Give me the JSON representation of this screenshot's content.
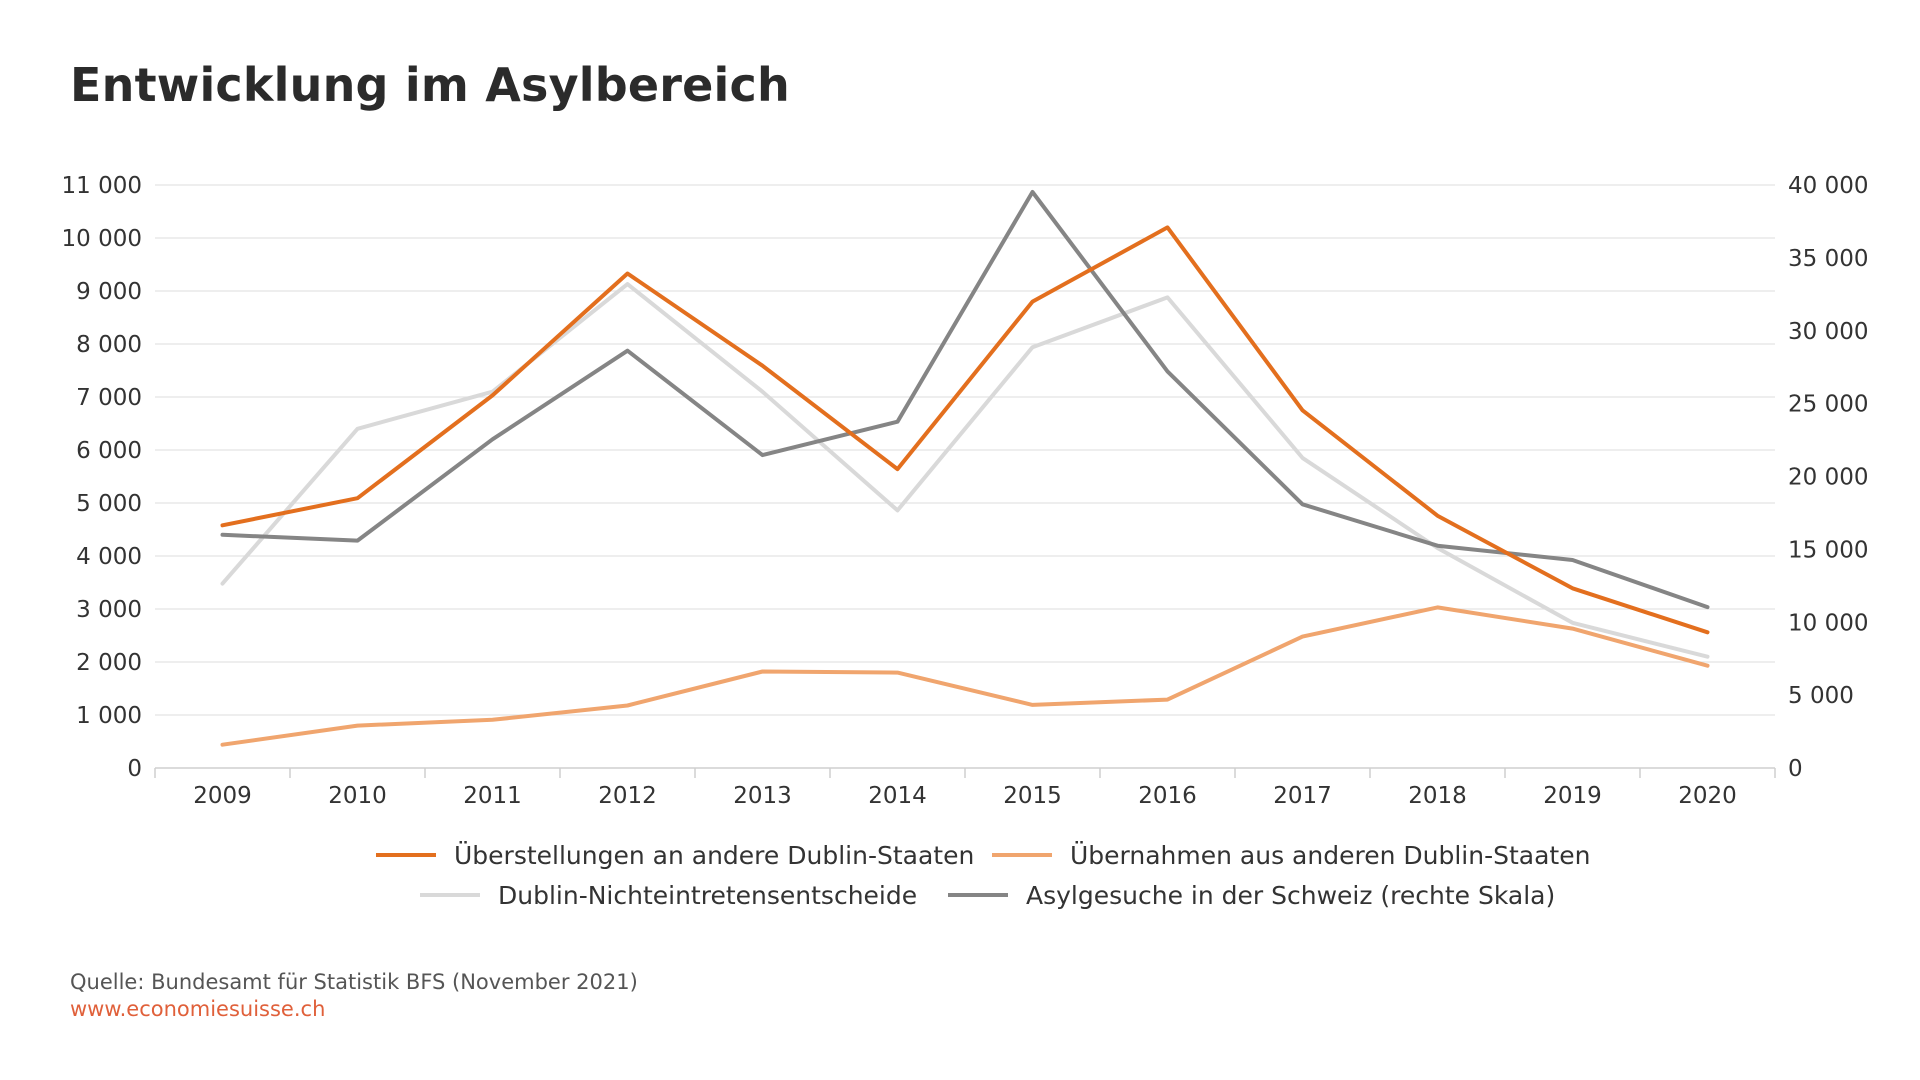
{
  "title": "Entwicklung im Asylbereich",
  "source": "Quelle: Bundesamt für Statistik BFS (November 2021)",
  "website": "www.economiesuisse.ch",
  "chart_data": {
    "type": "line",
    "title": "Entwicklung im Asylbereich",
    "x": [
      "2009",
      "2010",
      "2011",
      "2012",
      "2013",
      "2014",
      "2015",
      "2016",
      "2017",
      "2018",
      "2019",
      "2020"
    ],
    "left_axis": {
      "ylim": [
        0,
        11000
      ],
      "ticks": [
        0,
        1000,
        2000,
        3000,
        4000,
        5000,
        6000,
        7000,
        8000,
        9000,
        10000,
        11000
      ],
      "tick_labels": [
        "0",
        "1 000",
        "2 000",
        "3 000",
        "4 000",
        "5 000",
        "6 000",
        "7 000",
        "8 000",
        "9 000",
        "10 000",
        "11 000"
      ]
    },
    "right_axis": {
      "ylim": [
        0,
        40000
      ],
      "ticks": [
        0,
        5000,
        10000,
        15000,
        20000,
        25000,
        30000,
        35000,
        40000
      ],
      "tick_labels": [
        "0",
        "5 000",
        "10 000",
        "15 000",
        "20 000",
        "25 000",
        "30 000",
        "35 000",
        "40 000"
      ]
    },
    "grid": true,
    "legend_position": "bottom",
    "series": [
      {
        "name": "Dublin-Nichteintretensentscheide",
        "axis": "left",
        "color": "#d9d9d9",
        "values": [
          3480,
          6400,
          7100,
          9130,
          7100,
          4860,
          7940,
          8880,
          5850,
          4150,
          2740,
          2100
        ]
      },
      {
        "name": "Übernahmen aus anderen Dublin-Staaten",
        "axis": "left",
        "color": "#f0a56e",
        "values": [
          440,
          800,
          910,
          1180,
          1820,
          1800,
          1190,
          1290,
          2480,
          3030,
          2630,
          1930
        ]
      },
      {
        "name": "Asylgesuche in der Schweiz (rechte Skala)",
        "axis": "right",
        "color": "#858585",
        "values": [
          16000,
          15600,
          22550,
          28630,
          21470,
          23760,
          39520,
          27210,
          18090,
          15250,
          14270,
          11040
        ]
      },
      {
        "name": "Überstellungen an andere Dublin-Staaten",
        "axis": "left",
        "color": "#e36f1e",
        "values": [
          4580,
          5090,
          7030,
          9330,
          7590,
          5640,
          8800,
          10200,
          6750,
          4760,
          3390,
          2560
        ]
      }
    ],
    "legend": [
      {
        "label": "Überstellungen an andere Dublin-Staaten",
        "color": "#e36f1e"
      },
      {
        "label": "Übernahmen aus anderen Dublin-Staaten",
        "color": "#f0a56e"
      },
      {
        "label": "Dublin-Nichteintretensentscheide",
        "color": "#d9d9d9"
      },
      {
        "label": "Asylgesuche in der Schweiz (rechte Skala)",
        "color": "#858585"
      }
    ]
  }
}
